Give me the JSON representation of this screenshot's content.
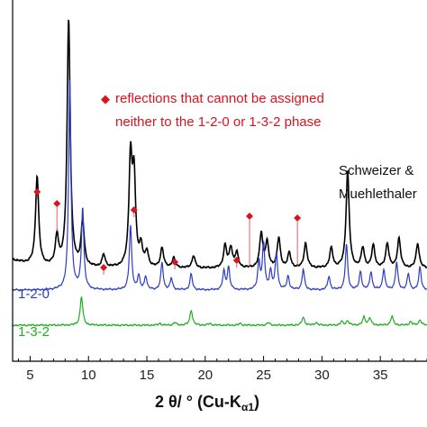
{
  "chart_data": {
    "type": "line",
    "xlabel_main": "2 θ/ ° (Cu-K",
    "xlabel_sub": "α1",
    "xlabel_close": ")",
    "xlim": [
      3.5,
      39
    ],
    "xticks": [
      5,
      10,
      15,
      20,
      25,
      30,
      35
    ],
    "legend_note": {
      "line1": "reflections that cannot be assigned",
      "line2": "neither to the 1-2-0 or 1-3-2 phase",
      "color": "#d9141e"
    },
    "unassigned_reflections_2theta": [
      5.6,
      7.3,
      11.3,
      13.9,
      17.4,
      22.7,
      23.8,
      27.9
    ],
    "series": [
      {
        "name": "Schweizer & Muehlethaler",
        "label_line1": "Schweizer &",
        "label_line2": "Muehlethaler",
        "color": "#000000",
        "peaks": [
          [
            5.6,
            0.36
          ],
          [
            7.3,
            0.12
          ],
          [
            8.3,
            1.0
          ],
          [
            9.5,
            0.18
          ],
          [
            11.3,
            0.05
          ],
          [
            13.6,
            0.43
          ],
          [
            13.9,
            0.35
          ],
          [
            14.5,
            0.08
          ],
          [
            15.0,
            0.06
          ],
          [
            16.3,
            0.08
          ],
          [
            17.3,
            0.04
          ],
          [
            19.0,
            0.05
          ],
          [
            21.7,
            0.09
          ],
          [
            22.2,
            0.08
          ],
          [
            22.7,
            0.06
          ],
          [
            24.8,
            0.14
          ],
          [
            25.3,
            0.1
          ],
          [
            26.3,
            0.12
          ],
          [
            27.2,
            0.06
          ],
          [
            28.6,
            0.1
          ],
          [
            30.8,
            0.08
          ],
          [
            32.2,
            0.39
          ],
          [
            33.5,
            0.08
          ],
          [
            34.4,
            0.09
          ],
          [
            35.6,
            0.1
          ],
          [
            36.6,
            0.12
          ],
          [
            38.2,
            0.1
          ]
        ]
      },
      {
        "name": "1-2-0",
        "label": "1-2-0",
        "color": "#2b3cc4",
        "peaks": [
          [
            8.4,
            0.92
          ],
          [
            9.5,
            0.36
          ],
          [
            13.6,
            0.28
          ],
          [
            14.3,
            0.06
          ],
          [
            14.9,
            0.06
          ],
          [
            16.3,
            0.12
          ],
          [
            17.1,
            0.05
          ],
          [
            18.8,
            0.07
          ],
          [
            21.6,
            0.08
          ],
          [
            22.0,
            0.1
          ],
          [
            24.6,
            0.12
          ],
          [
            25.0,
            0.2
          ],
          [
            25.6,
            0.08
          ],
          [
            26.1,
            0.16
          ],
          [
            27.1,
            0.06
          ],
          [
            28.4,
            0.09
          ],
          [
            30.6,
            0.06
          ],
          [
            32.1,
            0.2
          ],
          [
            33.3,
            0.08
          ],
          [
            34.2,
            0.08
          ],
          [
            35.3,
            0.09
          ],
          [
            36.4,
            0.12
          ],
          [
            37.4,
            0.07
          ],
          [
            38.4,
            0.1
          ]
        ]
      },
      {
        "name": "1-3-2",
        "label": "1-3-2",
        "color": "#1fae1f",
        "peaks": [
          [
            9.4,
            0.32
          ],
          [
            16.1,
            0.02
          ],
          [
            17.4,
            0.03
          ],
          [
            18.8,
            0.17
          ],
          [
            20.4,
            0.02
          ],
          [
            23.0,
            0.02
          ],
          [
            25.4,
            0.03
          ],
          [
            28.4,
            0.09
          ],
          [
            29.5,
            0.03
          ],
          [
            31.7,
            0.04
          ],
          [
            32.2,
            0.05
          ],
          [
            33.6,
            0.09
          ],
          [
            34.1,
            0.08
          ],
          [
            36.0,
            0.1
          ],
          [
            37.6,
            0.04
          ],
          [
            38.4,
            0.06
          ]
        ]
      }
    ]
  }
}
